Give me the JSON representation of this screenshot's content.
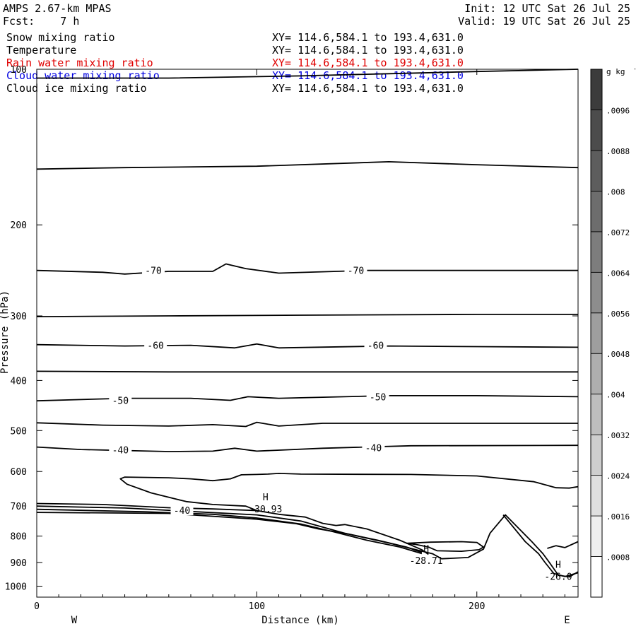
{
  "header": {
    "title": "AMPS 2.67-km MPAS",
    "forecast": "Fcst:    7 h",
    "init": "Init: 12 UTC Sat 26 Jul 25",
    "valid": "Valid: 19 UTC Sat 26 Jul 25"
  },
  "fields": [
    {
      "name": "Snow mixing ratio",
      "xy": "XY= 114.6,584.1 to 193.4,631.0",
      "color": "#000000"
    },
    {
      "name": "Temperature",
      "xy": "XY= 114.6,584.1 to 193.4,631.0",
      "color": "#000000"
    },
    {
      "name": "Rain water mixing ratio",
      "xy": "XY= 114.6,584.1 to 193.4,631.0",
      "color": "#e00000"
    },
    {
      "name": "Cloud water mixing ratio",
      "xy": "XY= 114.6,584.1 to 193.4,631.0",
      "color": "#0000e0"
    },
    {
      "name": "Cloud ice mixing ratio",
      "xy": "XY= 114.6,584.1 to 193.4,631.0",
      "color": "#000000"
    }
  ],
  "chart_data": {
    "type": "contour",
    "xlabel": "Distance (km)",
    "ylabel": "Pressure (hPa)",
    "xlim": [
      0,
      246
    ],
    "ylim": [
      1050,
      100
    ],
    "y_scale": "log",
    "x_ticks": [
      0,
      100,
      200
    ],
    "y_ticks": [
      100,
      200,
      300,
      400,
      500,
      600,
      700,
      800,
      900,
      1000
    ],
    "x_end_labels": {
      "left": "W",
      "right": "E"
    },
    "colorbar": {
      "units": "g kg",
      "units_exponent": "-1",
      "ticks": [
        ".0008",
        ".0016",
        ".0024",
        ".0032",
        ".004",
        ".0048",
        ".0056",
        ".0064",
        ".0072",
        ".008",
        ".0088",
        ".0096"
      ],
      "shading": "grayscale, light to dark upward"
    },
    "isotherm_labels": [
      {
        "x": 53,
        "p": 245,
        "text": "-70"
      },
      {
        "x": 145,
        "p": 245,
        "text": "-70"
      },
      {
        "x": 54,
        "p": 342,
        "text": "-60"
      },
      {
        "x": 154,
        "p": 342,
        "text": "-60"
      },
      {
        "x": 38,
        "p": 437,
        "text": "-50"
      },
      {
        "x": 155,
        "p": 430,
        "text": "-50"
      },
      {
        "x": 38,
        "p": 545,
        "text": "-40"
      },
      {
        "x": 153,
        "p": 540,
        "text": "-40"
      },
      {
        "x": 66,
        "p": 713,
        "text": "-40"
      }
    ],
    "extrema": [
      {
        "x": 104,
        "p": 700,
        "mark": "H",
        "value": "-30.93"
      },
      {
        "x": 177,
        "p": 880,
        "mark": "H",
        "value": "-28.71"
      },
      {
        "x": 237,
        "p": 945,
        "mark": "H",
        "value": "-26.0"
      }
    ],
    "isotherms": [
      {
        "level": -80,
        "points": [
          [
            0,
            104
          ],
          [
            60,
            104
          ],
          [
            120,
            103
          ],
          [
            160,
            102
          ],
          [
            200,
            101
          ],
          [
            246,
            100
          ]
        ]
      },
      {
        "level": -75,
        "points": [
          [
            0,
            156
          ],
          [
            40,
            155
          ],
          [
            100,
            154
          ],
          [
            160,
            151
          ],
          [
            200,
            153
          ],
          [
            246,
            155
          ]
        ]
      },
      {
        "level": -70,
        "points": [
          [
            0,
            245
          ],
          [
            30,
            247
          ],
          [
            40,
            249
          ],
          [
            60,
            246
          ],
          [
            80,
            246
          ],
          [
            86,
            238
          ],
          [
            95,
            243
          ],
          [
            110,
            248
          ],
          [
            150,
            245
          ],
          [
            200,
            245
          ],
          [
            246,
            245
          ]
        ]
      },
      {
        "level": -65,
        "points": [
          [
            0,
            301
          ],
          [
            60,
            300
          ],
          [
            120,
            299
          ],
          [
            200,
            298
          ],
          [
            246,
            298
          ]
        ]
      },
      {
        "level": -60,
        "points": [
          [
            0,
            341
          ],
          [
            40,
            343
          ],
          [
            70,
            342
          ],
          [
            90,
            346
          ],
          [
            100,
            340
          ],
          [
            110,
            346
          ],
          [
            160,
            343
          ],
          [
            200,
            344
          ],
          [
            246,
            345
          ]
        ]
      },
      {
        "level": -55,
        "points": [
          [
            0,
            384
          ],
          [
            60,
            385
          ],
          [
            120,
            385
          ],
          [
            200,
            385
          ],
          [
            246,
            385
          ]
        ]
      },
      {
        "level": -50,
        "points": [
          [
            0,
            438
          ],
          [
            40,
            433
          ],
          [
            70,
            433
          ],
          [
            88,
            437
          ],
          [
            96,
            430
          ],
          [
            110,
            433
          ],
          [
            160,
            428
          ],
          [
            200,
            428
          ],
          [
            246,
            430
          ]
        ]
      },
      {
        "level": -45,
        "points": [
          [
            0,
            483
          ],
          [
            30,
            488
          ],
          [
            60,
            490
          ],
          [
            80,
            487
          ],
          [
            95,
            491
          ],
          [
            100,
            482
          ],
          [
            110,
            490
          ],
          [
            130,
            484
          ],
          [
            200,
            484
          ],
          [
            246,
            484
          ]
        ]
      },
      {
        "level": -40,
        "points": [
          [
            0,
            538
          ],
          [
            20,
            544
          ],
          [
            60,
            549
          ],
          [
            80,
            548
          ],
          [
            90,
            541
          ],
          [
            100,
            548
          ],
          [
            130,
            541
          ],
          [
            170,
            535
          ],
          [
            246,
            534
          ]
        ]
      },
      {
        "level": -35,
        "points": [
          [
            246,
            642
          ],
          [
            242,
            646
          ],
          [
            236,
            645
          ],
          [
            226,
            628
          ],
          [
            200,
            612
          ],
          [
            170,
            608
          ],
          [
            120,
            607
          ],
          [
            110,
            605
          ],
          [
            105,
            607
          ],
          [
            100,
            608
          ],
          [
            93,
            609
          ],
          [
            88,
            620
          ],
          [
            80,
            625
          ],
          [
            70,
            620
          ],
          [
            60,
            617
          ],
          [
            40,
            615
          ],
          [
            38,
            620
          ],
          [
            41,
            635
          ],
          [
            52,
            660
          ],
          [
            68,
            686
          ],
          [
            80,
            695
          ],
          [
            95,
            700
          ],
          [
            100,
            714
          ]
        ]
      },
      {
        "level": -40,
        "points": [
          [
            0,
            692
          ],
          [
            30,
            695
          ],
          [
            60,
            705
          ],
          [
            80,
            709
          ],
          [
            100,
            714
          ],
          [
            110,
            726
          ],
          [
            122,
            735
          ],
          [
            130,
            756
          ],
          [
            136,
            763
          ],
          [
            140,
            760
          ],
          [
            150,
            775
          ],
          [
            165,
            815
          ],
          [
            175,
            850
          ],
          [
            178,
            868
          ]
        ]
      },
      {
        "level": -40,
        "points": [
          [
            0,
            700
          ],
          [
            40,
            706
          ],
          [
            70,
            717
          ],
          [
            100,
            728
          ],
          [
            120,
            748
          ],
          [
            140,
            790
          ],
          [
            155,
            815
          ],
          [
            168,
            840
          ],
          [
            175,
            860
          ]
        ]
      },
      {
        "level": -35,
        "points": [
          [
            0,
            710
          ],
          [
            50,
            718
          ],
          [
            80,
            726
          ],
          [
            100,
            738
          ],
          [
            120,
            758
          ],
          [
            135,
            785
          ],
          [
            150,
            815
          ],
          [
            165,
            840
          ],
          [
            175,
            865
          ]
        ]
      },
      {
        "level": -30,
        "points": [
          [
            0,
            720
          ],
          [
            60,
            723
          ],
          [
            100,
            742
          ],
          [
            118,
            757
          ],
          [
            128,
            775
          ],
          [
            140,
            790
          ],
          [
            160,
            825
          ],
          [
            180,
            866
          ],
          [
            184,
            885
          ],
          [
            196,
            880
          ],
          [
            203,
            848
          ],
          [
            206,
            790
          ],
          [
            213,
            728
          ],
          [
            225,
            820
          ],
          [
            230,
            865
          ],
          [
            233,
            900
          ],
          [
            237,
            952
          ],
          [
            242,
            960
          ],
          [
            246,
            938
          ]
        ]
      },
      {
        "level": -28,
        "points": [
          [
            168,
            826
          ],
          [
            179,
            822
          ],
          [
            193,
            820
          ],
          [
            200,
            823
          ],
          [
            203,
            840
          ],
          [
            201,
            850
          ],
          [
            193,
            856
          ],
          [
            182,
            854
          ],
          [
            178,
            840
          ],
          [
            172,
            830
          ],
          [
            168,
            826
          ]
        ]
      },
      {
        "level": -29,
        "points": [
          [
            212,
            728
          ],
          [
            222,
            820
          ],
          [
            228,
            865
          ],
          [
            231,
            900
          ],
          [
            235,
            945
          ],
          [
            240,
            958
          ],
          [
            246,
            942
          ]
        ]
      },
      {
        "level": -31,
        "points": [
          [
            232,
            845
          ],
          [
            236,
            835
          ],
          [
            240,
            842
          ],
          [
            246,
            820
          ]
        ]
      }
    ]
  }
}
